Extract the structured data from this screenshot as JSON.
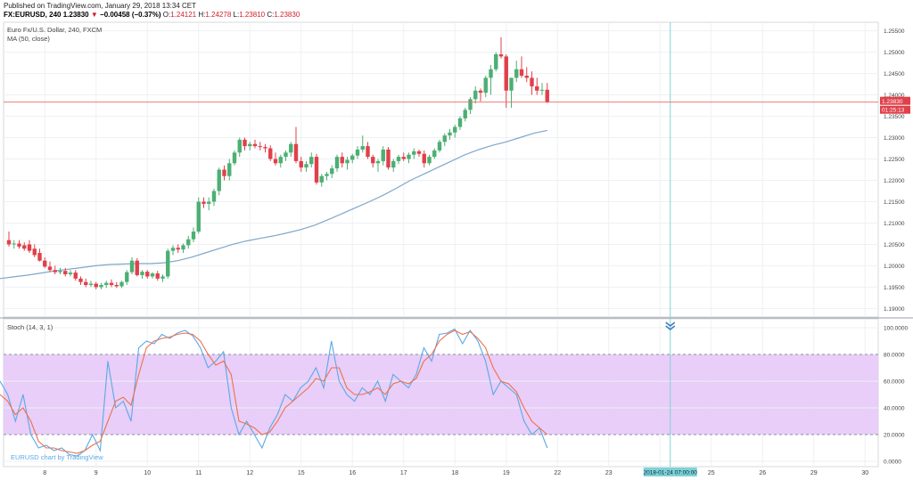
{
  "header": {
    "published": "Published on TradingView.com, January 29, 2018 13:34 CET",
    "symbol": "FX:EURUSD, 240",
    "last": "1.23830",
    "change": "−0.00458 (−0.37%)",
    "o_label": "O:",
    "o": "1.24121",
    "h_label": "H:",
    "h": "1.24278",
    "l_label": "L:",
    "l": "1.23810",
    "c_label": "C:",
    "c": "1.23830"
  },
  "price_pane": {
    "title": "Euro Fx/U.S. Dollar, 240, FXCM",
    "indicator": "MA (50, close)",
    "last_price_tag": "1.23830",
    "countdown_tag": "01:25:13"
  },
  "stoch_pane": {
    "title": "Stoch (14, 3, 1)",
    "watermark": "EURUSD chart by TradingView"
  },
  "crosshair_label": "2018-01-24 07:00:00",
  "colors": {
    "up": "#4caf73",
    "down": "#e0404a",
    "ma": "#7fa7c9",
    "k_line": "#5aa9e6",
    "d_line": "#f0704a",
    "band_fill": "#e6c9f7",
    "crosshair": "#7dd3d8",
    "price_line": "#e66"
  },
  "chart_data": [
    {
      "type": "candlestick",
      "y_ticks": [
        "1.25500",
        "1.25000",
        "1.24500",
        "1.24000",
        "1.23500",
        "1.23000",
        "1.22500",
        "1.22000",
        "1.21500",
        "1.21000",
        "1.20500",
        "1.20000",
        "1.19500",
        "1.19000"
      ],
      "ylim": [
        1.188,
        1.257
      ],
      "x_ticks": [
        {
          "label": "8",
          "i": 7
        },
        {
          "label": "9",
          "i": 17
        },
        {
          "label": "10",
          "i": 27
        },
        {
          "label": "11",
          "i": 37
        },
        {
          "label": "12",
          "i": 47
        },
        {
          "label": "15",
          "i": 57
        },
        {
          "label": "16",
          "i": 67
        },
        {
          "label": "17",
          "i": 77
        },
        {
          "label": "18",
          "i": 87
        },
        {
          "label": "19",
          "i": 97
        },
        {
          "label": "22",
          "i": 107
        },
        {
          "label": "23",
          "i": 117
        },
        {
          "label": "24",
          "i": 127
        },
        {
          "label": "25",
          "i": 137
        },
        {
          "label": "26",
          "i": 147
        },
        {
          "label": "29",
          "i": 157
        },
        {
          "label": "30",
          "i": 167
        }
      ],
      "crosshair_index": 129,
      "candles": [
        [
          1.206,
          1.208,
          1.2045,
          1.205
        ],
        [
          1.205,
          1.206,
          1.204,
          1.2052
        ],
        [
          1.2052,
          1.206,
          1.204,
          1.2045
        ],
        [
          1.2048,
          1.2055,
          1.2035,
          1.204
        ],
        [
          1.205,
          1.206,
          1.203,
          1.2035
        ],
        [
          1.204,
          1.205,
          1.202,
          1.2025
        ],
        [
          1.203,
          1.204,
          1.201,
          1.2012
        ],
        [
          1.2012,
          1.202,
          1.1995,
          1.1998
        ],
        [
          1.1998,
          1.201,
          1.1985,
          1.199
        ],
        [
          1.199,
          1.2,
          1.198,
          1.1985
        ],
        [
          1.1985,
          1.1995,
          1.198,
          1.1988
        ],
        [
          1.1988,
          1.1995,
          1.1975,
          1.198
        ],
        [
          1.198,
          1.199,
          1.1975,
          1.1984
        ],
        [
          1.1984,
          1.199,
          1.1965,
          1.197
        ],
        [
          1.197,
          1.1975,
          1.1955,
          1.1962
        ],
        [
          1.1962,
          1.197,
          1.195,
          1.1955
        ],
        [
          1.1955,
          1.1965,
          1.195,
          1.1958
        ],
        [
          1.1958,
          1.1962,
          1.1945,
          1.195
        ],
        [
          1.195,
          1.196,
          1.1945,
          1.1955
        ],
        [
          1.1955,
          1.1965,
          1.1948,
          1.196
        ],
        [
          1.196,
          1.1968,
          1.195,
          1.1955
        ],
        [
          1.1955,
          1.1962,
          1.1948,
          1.1952
        ],
        [
          1.1952,
          1.1965,
          1.1948,
          1.1962
        ],
        [
          1.1962,
          1.199,
          1.1955,
          1.1985
        ],
        [
          1.1985,
          1.202,
          1.198,
          1.2012
        ],
        [
          1.2012,
          1.2018,
          1.1975,
          1.1978
        ],
        [
          1.1978,
          1.199,
          1.197,
          1.1986
        ],
        [
          1.1986,
          1.199,
          1.197,
          1.1975
        ],
        [
          1.1975,
          1.1985,
          1.197,
          1.1982
        ],
        [
          1.1982,
          1.1988,
          1.1965,
          1.197
        ],
        [
          1.197,
          1.198,
          1.1962,
          1.1975
        ],
        [
          1.1975,
          1.204,
          1.197,
          1.2035
        ],
        [
          1.2035,
          1.2048,
          1.2025,
          1.2042
        ],
        [
          1.2042,
          1.205,
          1.203,
          1.2038
        ],
        [
          1.2038,
          1.2052,
          1.203,
          1.2048
        ],
        [
          1.2048,
          1.207,
          1.204,
          1.2062
        ],
        [
          1.2062,
          1.209,
          1.2055,
          1.208
        ],
        [
          1.208,
          1.216,
          1.2075,
          1.215
        ],
        [
          1.215,
          1.216,
          1.2135,
          1.2145
        ],
        [
          1.2145,
          1.216,
          1.213,
          1.215
        ],
        [
          1.215,
          1.218,
          1.214,
          1.2175
        ],
        [
          1.2175,
          1.223,
          1.2165,
          1.2225
        ],
        [
          1.2225,
          1.2235,
          1.22,
          1.221
        ],
        [
          1.221,
          1.225,
          1.22,
          1.224
        ],
        [
          1.224,
          1.227,
          1.2235,
          1.2265
        ],
        [
          1.2265,
          1.23,
          1.2255,
          1.2295
        ],
        [
          1.2295,
          1.23,
          1.227,
          1.228
        ],
        [
          1.228,
          1.229,
          1.227,
          1.2285
        ],
        [
          1.2285,
          1.2295,
          1.2275,
          1.228
        ],
        [
          1.228,
          1.229,
          1.227,
          1.2278
        ],
        [
          1.2278,
          1.2285,
          1.2265,
          1.2275
        ],
        [
          1.2275,
          1.2282,
          1.2245,
          1.225
        ],
        [
          1.225,
          1.2265,
          1.2235,
          1.224
        ],
        [
          1.224,
          1.226,
          1.223,
          1.2255
        ],
        [
          1.2255,
          1.227,
          1.2245,
          1.2265
        ],
        [
          1.2265,
          1.229,
          1.2255,
          1.2285
        ],
        [
          1.2285,
          1.2325,
          1.224,
          1.2245
        ],
        [
          1.2245,
          1.2255,
          1.222,
          1.223
        ],
        [
          1.223,
          1.2245,
          1.222,
          1.2238
        ],
        [
          1.2238,
          1.2265,
          1.223,
          1.2255
        ],
        [
          1.2255,
          1.2262,
          1.219,
          1.2195
        ],
        [
          1.2195,
          1.2215,
          1.2185,
          1.221
        ],
        [
          1.221,
          1.222,
          1.22,
          1.2215
        ],
        [
          1.2215,
          1.2235,
          1.2205,
          1.2228
        ],
        [
          1.2228,
          1.226,
          1.222,
          1.2255
        ],
        [
          1.2255,
          1.2265,
          1.223,
          1.224
        ],
        [
          1.224,
          1.2255,
          1.2225,
          1.2248
        ],
        [
          1.2248,
          1.2262,
          1.224,
          1.2258
        ],
        [
          1.2258,
          1.228,
          1.225,
          1.2272
        ],
        [
          1.2272,
          1.2305,
          1.2265,
          1.228
        ],
        [
          1.228,
          1.229,
          1.225,
          1.2255
        ],
        [
          1.2255,
          1.226,
          1.223,
          1.224
        ],
        [
          1.224,
          1.225,
          1.222,
          1.2245
        ],
        [
          1.2245,
          1.228,
          1.2235,
          1.2272
        ],
        [
          1.2272,
          1.2278,
          1.2225,
          1.223
        ],
        [
          1.223,
          1.225,
          1.222,
          1.2245
        ],
        [
          1.2245,
          1.226,
          1.2238,
          1.2255
        ],
        [
          1.2255,
          1.2265,
          1.2245,
          1.225
        ],
        [
          1.225,
          1.2265,
          1.224,
          1.226
        ],
        [
          1.226,
          1.2275,
          1.225,
          1.2268
        ],
        [
          1.2268,
          1.2272,
          1.2255,
          1.2262
        ],
        [
          1.2262,
          1.227,
          1.223,
          1.224
        ],
        [
          1.224,
          1.226,
          1.2235,
          1.2255
        ],
        [
          1.2255,
          1.2275,
          1.225,
          1.227
        ],
        [
          1.227,
          1.2295,
          1.2265,
          1.229
        ],
        [
          1.229,
          1.231,
          1.228,
          1.2305
        ],
        [
          1.2305,
          1.232,
          1.2295,
          1.2312
        ],
        [
          1.2312,
          1.233,
          1.23,
          1.2325
        ],
        [
          1.2325,
          1.235,
          1.2318,
          1.2345
        ],
        [
          1.2345,
          1.237,
          1.2338,
          1.2365
        ],
        [
          1.2365,
          1.2395,
          1.2355,
          1.239
        ],
        [
          1.239,
          1.242,
          1.238,
          1.241
        ],
        [
          1.241,
          1.2415,
          1.2385,
          1.2405
        ],
        [
          1.2405,
          1.2445,
          1.2395,
          1.244
        ],
        [
          1.244,
          1.247,
          1.24,
          1.246
        ],
        [
          1.246,
          1.25,
          1.2455,
          1.2495
        ],
        [
          1.2495,
          1.2535,
          1.2485,
          1.249
        ],
        [
          1.249,
          1.2495,
          1.237,
          1.241
        ],
        [
          1.241,
          1.244,
          1.237,
          1.244
        ],
        [
          1.244,
          1.248,
          1.243,
          1.246
        ],
        [
          1.246,
          1.249,
          1.244,
          1.2445
        ],
        [
          1.2445,
          1.2465,
          1.243,
          1.244
        ],
        [
          1.244,
          1.2455,
          1.24,
          1.242
        ],
        [
          1.242,
          1.244,
          1.24,
          1.241
        ],
        [
          1.241,
          1.2428,
          1.24,
          1.2412
        ],
        [
          1.2412,
          1.2428,
          1.2381,
          1.2383
        ]
      ],
      "ma": [
        1.197,
        1.1974,
        1.1978,
        1.1983,
        1.1988,
        1.1992,
        1.1996,
        1.2,
        1.2003,
        1.2004,
        1.2005,
        1.2005,
        1.2007,
        1.2012,
        1.202,
        1.203,
        1.204,
        1.205,
        1.2058,
        1.2064,
        1.207,
        1.2077,
        1.2085,
        1.2095,
        1.2108,
        1.2122,
        1.2136,
        1.215,
        1.2165,
        1.2182,
        1.22,
        1.2215,
        1.223,
        1.2245,
        1.226,
        1.2272,
        1.2282,
        1.229,
        1.23,
        1.231,
        1.2317
      ]
    },
    {
      "type": "line",
      "title": "Stoch (14, 3, 1)",
      "y_ticks": [
        "100.0000",
        "80.0000",
        "60.0000",
        "40.0000",
        "20.0000",
        "0.0000"
      ],
      "ylim": [
        0,
        100
      ],
      "band": [
        20,
        80
      ],
      "series": [
        {
          "name": "%K",
          "values": [
            60,
            50,
            30,
            50,
            20,
            10,
            12,
            8,
            10,
            5,
            4,
            8,
            20,
            8,
            75,
            40,
            45,
            30,
            85,
            90,
            88,
            95,
            92,
            96,
            98,
            94,
            85,
            70,
            75,
            82,
            40,
            20,
            30,
            20,
            10,
            25,
            35,
            50,
            45,
            55,
            60,
            70,
            55,
            90,
            60,
            50,
            45,
            55,
            50,
            60,
            45,
            65,
            60,
            55,
            65,
            85,
            75,
            95,
            96,
            99,
            88,
            98,
            90,
            75,
            50,
            60,
            55,
            50,
            30,
            20,
            25,
            10
          ]
        },
        {
          "name": "%D",
          "values": [
            50,
            45,
            35,
            40,
            30,
            15,
            10,
            10,
            8,
            7,
            6,
            8,
            12,
            15,
            30,
            45,
            48,
            42,
            65,
            85,
            90,
            92,
            93,
            95,
            96,
            95,
            90,
            80,
            72,
            75,
            65,
            30,
            28,
            25,
            20,
            22,
            30,
            40,
            45,
            50,
            55,
            62,
            60,
            70,
            70,
            55,
            50,
            50,
            52,
            55,
            50,
            58,
            60,
            58,
            62,
            75,
            80,
            90,
            95,
            98,
            95,
            97,
            92,
            85,
            70,
            60,
            58,
            52,
            40,
            30,
            25,
            20
          ]
        }
      ]
    }
  ]
}
